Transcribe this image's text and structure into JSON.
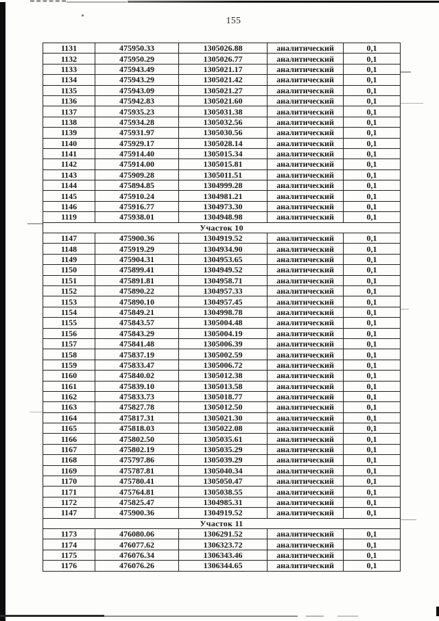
{
  "page": {
    "number": "155"
  },
  "colors": {
    "ink": "#1b1b1b",
    "paper": "#fdfdfc",
    "edge_bar": "#0d0d0d"
  },
  "table": {
    "row_value_method": "аналитический",
    "row_value_precision": "0,1",
    "sections": [
      {
        "header": "",
        "rows": [
          [
            "1131",
            "475950.33",
            "1305026.88",
            "аналитический",
            "0,1"
          ],
          [
            "1132",
            "475950.29",
            "1305026.77",
            "аналитический",
            "0,1"
          ],
          [
            "1133",
            "475943.49",
            "1305021.17",
            "аналитический",
            "0,1"
          ],
          [
            "1134",
            "475943.29",
            "1305021.42",
            "аналитический",
            "0,1"
          ],
          [
            "1135",
            "475943.09",
            "1305021.27",
            "аналитический",
            "0,1"
          ],
          [
            "1136",
            "475942.83",
            "1305021.60",
            "аналитический",
            "0,1"
          ],
          [
            "1137",
            "475935.23",
            "1305031.38",
            "аналитический",
            "0,1"
          ],
          [
            "1138",
            "475934.28",
            "1305032.56",
            "аналитический",
            "0,1"
          ],
          [
            "1139",
            "475931.97",
            "1305030.56",
            "аналитический",
            "0,1"
          ],
          [
            "1140",
            "475929.17",
            "1305028.14",
            "аналитический",
            "0,1"
          ],
          [
            "1141",
            "475914.40",
            "1305015.34",
            "аналитический",
            "0,1"
          ],
          [
            "1142",
            "475914.00",
            "1305015.81",
            "аналитический",
            "0,1"
          ],
          [
            "1143",
            "475909.28",
            "1305011.51",
            "аналитический",
            "0,1"
          ],
          [
            "1144",
            "475894.85",
            "1304999.28",
            "аналитический",
            "0,1"
          ],
          [
            "1145",
            "475910.24",
            "1304981.21",
            "аналитический",
            "0,1"
          ],
          [
            "1146",
            "475916.77",
            "1304973.30",
            "аналитический",
            "0,1"
          ],
          [
            "1119",
            "475938.01",
            "1304948.98",
            "аналитический",
            "0,1"
          ]
        ]
      },
      {
        "header": "Участок 10",
        "rows": [
          [
            "1147",
            "475900.36",
            "1304919.52",
            "аналитический",
            "0,1"
          ],
          [
            "1148",
            "475919.29",
            "1304934.90",
            "аналитический",
            "0,1"
          ],
          [
            "1149",
            "475904.31",
            "1304953.65",
            "аналитический",
            "0,1"
          ],
          [
            "1150",
            "475899.41",
            "1304949.52",
            "аналитический",
            "0,1"
          ],
          [
            "1151",
            "475891.81",
            "1304958.71",
            "аналитический",
            "0,1"
          ],
          [
            "1152",
            "475890.22",
            "1304957.33",
            "аналитический",
            "0,1"
          ],
          [
            "1153",
            "475890.10",
            "1304957.45",
            "аналитический",
            "0,1"
          ],
          [
            "1154",
            "475849.21",
            "1304998.78",
            "аналитический",
            "0,1"
          ],
          [
            "1155",
            "475843.57",
            "1305004.48",
            "аналитический",
            "0,1"
          ],
          [
            "1156",
            "475843.29",
            "1305004.19",
            "аналитический",
            "0,1"
          ],
          [
            "1157",
            "475841.48",
            "1305006.39",
            "аналитический",
            "0,1"
          ],
          [
            "1158",
            "475837.19",
            "1305002.59",
            "аналитический",
            "0,1"
          ],
          [
            "1159",
            "475833.47",
            "1305006.72",
            "аналитический",
            "0,1"
          ],
          [
            "1160",
            "475840.02",
            "1305012.38",
            "аналитический",
            "0,1"
          ],
          [
            "1161",
            "475839.10",
            "1305013.58",
            "аналитический",
            "0,1"
          ],
          [
            "1162",
            "475833.73",
            "1305018.77",
            "аналитический",
            "0,1"
          ],
          [
            "1163",
            "475827.78",
            "1305012.50",
            "аналитический",
            "0,1"
          ],
          [
            "1164",
            "475817.31",
            "1305021.30",
            "аналитический",
            "0,1"
          ],
          [
            "1165",
            "475818.03",
            "1305022.08",
            "аналитический",
            "0,1"
          ],
          [
            "1166",
            "475802.50",
            "1305035.61",
            "аналитический",
            "0,1"
          ],
          [
            "1167",
            "475802.19",
            "1305035.29",
            "аналитический",
            "0,1"
          ],
          [
            "1168",
            "475797.86",
            "1305039.29",
            "аналитический",
            "0,1"
          ],
          [
            "1169",
            "475787.81",
            "1305040.34",
            "аналитический",
            "0,1"
          ],
          [
            "1170",
            "475780.41",
            "1305050.47",
            "аналитический",
            "0,1"
          ],
          [
            "1171",
            "475764.81",
            "1305038.55",
            "аналитический",
            "0,1"
          ],
          [
            "1172",
            "475825.47",
            "1304985.31",
            "аналитический",
            "0,1"
          ],
          [
            "1147",
            "475900.36",
            "1304919.52",
            "аналитический",
            "0,1"
          ]
        ]
      },
      {
        "header": "Участок 11",
        "rows": [
          [
            "1173",
            "476080.06",
            "1306291.52",
            "аналитический",
            "0,1"
          ],
          [
            "1174",
            "476077.62",
            "1306323.72",
            "аналитический",
            "0,1"
          ],
          [
            "1175",
            "476076.34",
            "1306343.46",
            "аналитический",
            "0,1"
          ],
          [
            "1176",
            "476076.26",
            "1306344.65",
            "аналитический",
            "0,1"
          ]
        ]
      }
    ]
  }
}
